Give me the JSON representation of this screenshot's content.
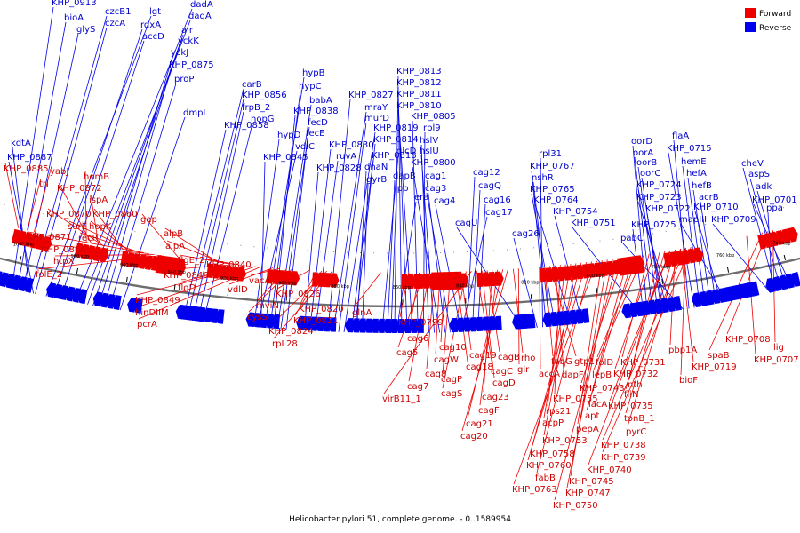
{
  "caption": "Helicobacter pylori 51, complete genome. - 0..1589954",
  "legend": [
    {
      "label": "Forward",
      "color": "#ee0000"
    },
    {
      "label": "Reverse",
      "color": "#0000ee"
    }
  ],
  "ticks": [
    "1000 kbp",
    "980 kbp",
    "960 kbp",
    "940 kbp",
    "920 kbp",
    "900 kbp",
    "880 kbp",
    "860 kbp",
    "840 kbp",
    "820 kbp",
    "800 kbp",
    "780 kbp",
    "760 kbp",
    "740 kbp"
  ],
  "reverse_labels": [
    "KHP_0913",
    "bioA",
    "glyS",
    "czcB1",
    "czcA",
    "lgt",
    "rdxA",
    "accD",
    "dadA",
    "dagA",
    "alr",
    "yckK",
    "yckJ",
    "KHP_0875",
    "proP",
    "dmpI",
    "kdtA",
    "KHP_0887",
    "carB",
    "KHP_0856",
    "frpB_2",
    "hopG",
    "KHP_0858",
    "hypB",
    "hypC",
    "babA",
    "KHP_0838",
    "fecD",
    "fecE",
    "hypD",
    "vdlC",
    "KHP_0845",
    "KHP_0830",
    "KHP_0828",
    "KHP_0827",
    "mraY",
    "murD",
    "KHP_0819",
    "ruvA",
    "KHP_0818",
    "dnaN",
    "gyrB",
    "KHP_0814",
    "glcD",
    "dapB",
    "lpp",
    "era",
    "KHP_0813",
    "KHP_0812",
    "KHP_0811",
    "KHP_0810",
    "KHP_0805",
    "rpl9",
    "hslV",
    "hslU",
    "KHP_0800",
    "cag1",
    "cag3",
    "cag4",
    "cag12",
    "cagQ",
    "cag16",
    "cag17",
    "cagU",
    "cag26",
    "rpl31",
    "KHP_0767",
    "nshR",
    "KHP_0765",
    "KHP_0764",
    "KHP_0754",
    "KHP_0751",
    "oorD",
    "oorA",
    "oorB",
    "oorC",
    "KHP_0724",
    "KHP_0723",
    "KHP_0722",
    "KHP_0725",
    "pabC",
    "flaA",
    "KHP_0715",
    "hemE",
    "hefA",
    "hefB",
    "acrB",
    "KHP_0710",
    "mapIII",
    "KHP_0709",
    "cheV",
    "aspS",
    "adk",
    "KHP_0701",
    "ppa"
  ],
  "forward_labels": [
    "KHP_0885",
    "trl",
    "yabJ",
    "homB",
    "KHP_0872",
    "ispA",
    "KHP_0870",
    "KHP_0860",
    "hopK",
    "surE",
    "recR",
    "KHP_0871",
    "KHP_0864",
    "htpX",
    "folE_2",
    "gap",
    "alpB",
    "alpA",
    "flgE_2",
    "KHP_0846",
    "KHP_0840",
    "flgD",
    "KHP_0849",
    "hinDIIM",
    "pcrA",
    "vdlD",
    "vacA",
    "mviN",
    "cysS",
    "KHP_0826",
    "KHP_0820",
    "KHP_0821",
    "KHP_0824",
    "rpL28",
    "glnA",
    "KHP_0799",
    "cag6",
    "cag5",
    "cag7",
    "cag8",
    "cagW",
    "cag10",
    "cagP",
    "cag18",
    "cag19",
    "cagS",
    "virB11_1",
    "cagC",
    "cagD",
    "cagB",
    "cag23",
    "cagF",
    "cag21",
    "cag20",
    "rho",
    "glr",
    "accA",
    "fabG",
    "gtp1",
    "dapF",
    "KHP_0755",
    "rps21",
    "acpP",
    "KHP_0753",
    "KHP_0758",
    "KHP_0760",
    "fabB",
    "KHP_0763",
    "pepA",
    "KHP_0745",
    "KHP_0747",
    "KHP_0750",
    "KHP_0743",
    "lacA",
    "apt",
    "folD",
    "lepB",
    "KHP_0731",
    "KHP_0732",
    "nth",
    "fliN",
    "KHP_0735",
    "tonB_1",
    "pyrC",
    "KHP_0738",
    "KHP_0739",
    "KHP_0740",
    "pbp1A",
    "KHP_0719",
    "bioF",
    "spaB",
    "KHP_0708",
    "lig",
    "KHP_0707"
  ]
}
